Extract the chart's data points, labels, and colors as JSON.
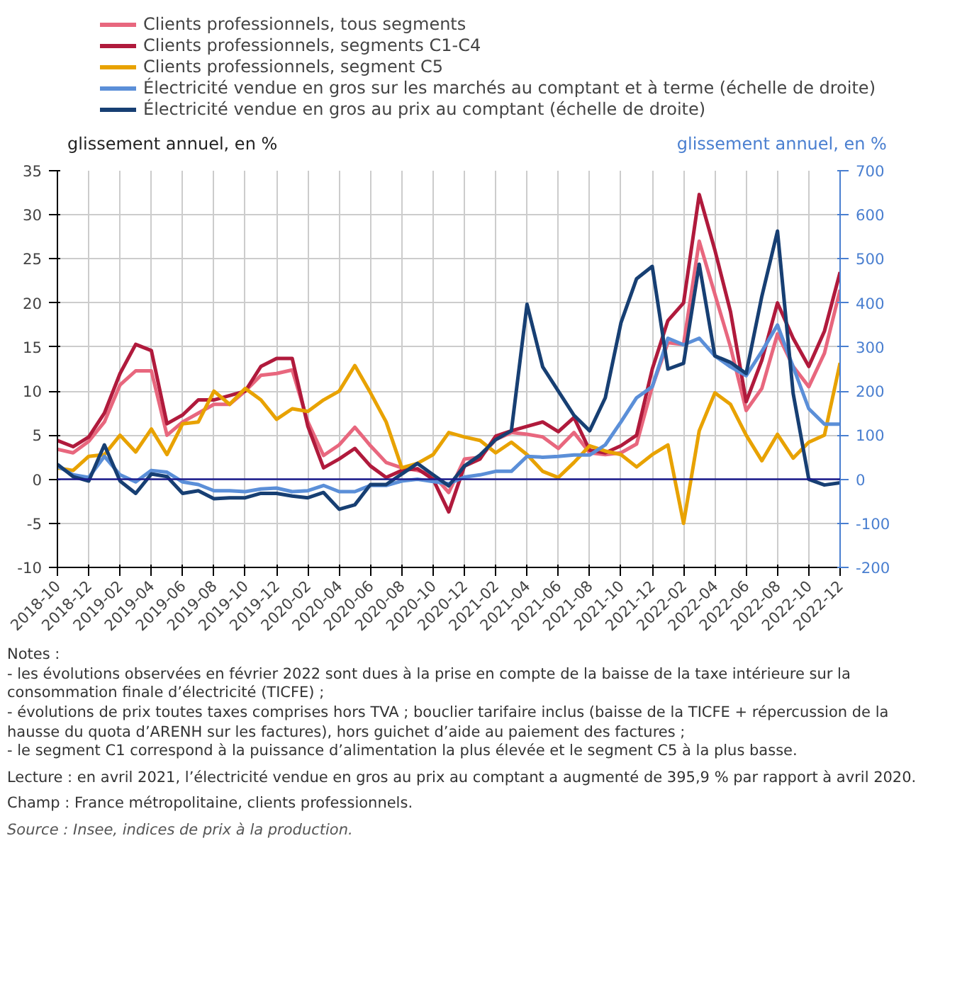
{
  "chart_data": {
    "type": "line",
    "categories": [
      "2018-10",
      null,
      "2018-12",
      null,
      "2019-02",
      null,
      "2019-04",
      null,
      "2019-06",
      null,
      "2019-08",
      null,
      "2019-10",
      null,
      "2019-12",
      null,
      "2020-02",
      null,
      "2020-04",
      null,
      "2020-06",
      null,
      "2020-08",
      null,
      "2020-10",
      null,
      "2020-12",
      null,
      "2021-02",
      null,
      "2021-04",
      null,
      "2021-06",
      null,
      "2021-08",
      null,
      "2021-10",
      null,
      "2021-12",
      null,
      "2022-02",
      null,
      "2022-04",
      null,
      "2022-06",
      null,
      "2022-08",
      null,
      "2022-10",
      null,
      "2022-12"
    ],
    "ylabel": "glissement annuel, en %",
    "y2label": "glissement annuel, en %",
    "ylim": [
      -10,
      35
    ],
    "yticks": [
      -10,
      -5,
      0,
      5,
      10,
      15,
      20,
      25,
      30,
      35
    ],
    "y2lim": [
      -200,
      700
    ],
    "y2ticks": [
      -200,
      -100,
      0,
      100,
      200,
      300,
      400,
      500,
      600,
      700
    ],
    "grid": true,
    "legend": "top",
    "ref_lines": [
      {
        "axis": "y",
        "value": 0,
        "color": "#1a1a8c"
      }
    ],
    "series": [
      {
        "name": "Clients professionnels, tous segments",
        "color": "#e8677e",
        "values": [
          3.4,
          3.0,
          4.3,
          6.5,
          10.7,
          12.3,
          12.3,
          5.0,
          6.5,
          7.5,
          8.5,
          8.5,
          10.0,
          11.8,
          12.0,
          12.4,
          6.5,
          2.7,
          3.9,
          5.9,
          3.8,
          1.9,
          1.3,
          1.0,
          0.5,
          -1.5,
          2.3,
          2.5,
          4.5,
          5.3,
          5.1,
          4.8,
          3.5,
          5.3,
          3.0,
          2.8,
          3.0,
          4.0,
          10.5,
          15.5,
          15.3,
          27.0,
          21.0,
          15.0,
          7.8,
          10.3,
          16.5,
          12.8,
          10.5,
          14.3,
          21.5
        ]
      },
      {
        "name": "Clients professionnels, segments C1-C4",
        "color": "#b01a3c",
        "values": [
          4.4,
          3.7,
          4.8,
          7.5,
          12.0,
          15.3,
          14.6,
          6.3,
          7.3,
          9.0,
          9.0,
          9.5,
          10.0,
          12.8,
          13.7,
          13.7,
          6.0,
          1.3,
          2.3,
          3.5,
          1.5,
          0.2,
          1.0,
          1.2,
          0.0,
          -3.7,
          1.5,
          2.3,
          4.9,
          5.5,
          6.0,
          6.5,
          5.4,
          7.0,
          3.3,
          3.0,
          3.8,
          5.0,
          12.5,
          18.0,
          20.0,
          32.3,
          26.0,
          19.0,
          8.8,
          13.5,
          20.0,
          16.0,
          12.8,
          16.8,
          23.5
        ]
      },
      {
        "name": "Clients professionnels, segment C5",
        "color": "#e8a200",
        "values": [
          1.3,
          1.0,
          2.6,
          2.8,
          5.0,
          3.1,
          5.7,
          2.8,
          6.3,
          6.5,
          10.0,
          8.5,
          10.3,
          9.0,
          6.8,
          8.0,
          7.7,
          9.0,
          10.0,
          12.9,
          9.8,
          6.5,
          1.3,
          1.8,
          2.8,
          5.3,
          4.8,
          4.4,
          3.0,
          4.2,
          2.8,
          0.9,
          0.2,
          1.9,
          3.8,
          3.2,
          2.8,
          1.4,
          2.8,
          3.9,
          -5.0,
          5.5,
          9.8,
          8.5,
          5.0,
          2.1,
          5.1,
          2.4,
          4.2,
          5.0,
          13.2
        ]
      },
      {
        "name": "Électricité vendue en gros sur les marchés au comptant et à terme (échelle de droite)",
        "color": "#5b8fd8",
        "axis": "y2",
        "values": [
          30,
          10,
          4,
          52,
          10,
          -6,
          20,
          16,
          -6,
          -12,
          -26,
          -26,
          -28,
          -22,
          -20,
          -28,
          -26,
          -14,
          -28,
          -28,
          -14,
          -14,
          -4,
          0,
          -5,
          -10,
          5,
          10,
          18,
          18,
          52,
          50,
          52,
          55,
          55,
          78,
          130,
          185,
          210,
          320,
          305,
          320,
          280,
          255,
          235,
          290,
          350,
          255,
          160,
          125,
          125
        ]
      },
      {
        "name": "Électricité vendue en gros au prix au comptant (échelle de droite)",
        "color": "#173f73",
        "axis": "y2",
        "values": [
          34,
          6,
          -4,
          78,
          -4,
          -32,
          12,
          6,
          -32,
          -26,
          -44,
          -42,
          -42,
          -32,
          -32,
          -38,
          -42,
          -30,
          -68,
          -58,
          -12,
          -12,
          12,
          36,
          10,
          -15,
          30,
          55,
          90,
          110,
          397,
          255,
          200,
          145,
          110,
          185,
          355,
          455,
          483,
          250,
          263,
          488,
          280,
          265,
          240,
          415,
          563,
          195,
          0,
          -13,
          -8
        ]
      }
    ],
    "annotations": [
      "Notes :",
      "- les évolutions observées en février 2022 sont dues à la prise en compte de la baisse de la taxe intérieure sur la consommation finale d’électricité (TICFE) ;",
      "- évolutions de prix toutes taxes comprises hors TVA ; bouclier tarifaire inclus (baisse de la TICFE + répercussion de la hausse du quota d’ARENH sur les factures), hors guichet d’aide au paiement des factures ;",
      "- le segment C1 correspond à la puissance d’alimentation la plus élevée et le segment C5 à la plus basse.",
      "Lecture : en avril 2021, l’électricité vendue en gros au prix au comptant a augmenté de 395,9 % par rapport à avril 2020.",
      "Champ : France métropolitaine, clients professionnels.",
      "Source : Insee, indices de prix à la production."
    ]
  }
}
